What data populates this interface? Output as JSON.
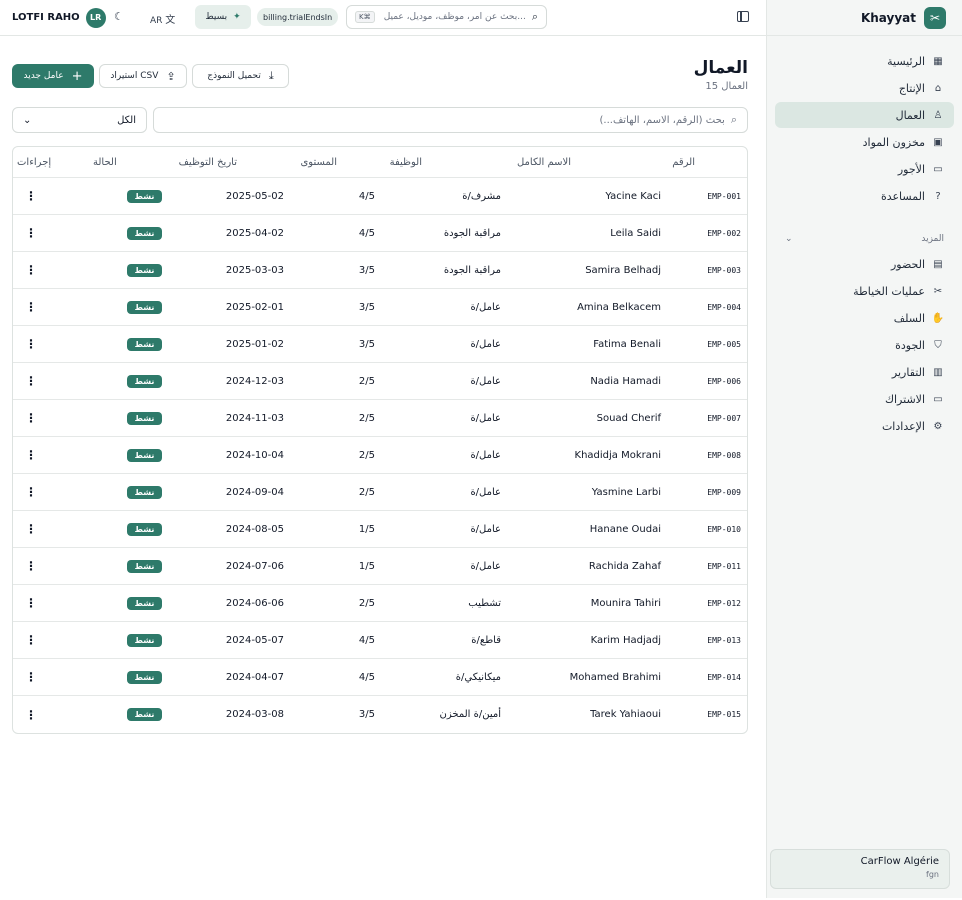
{
  "app": {
    "name": "Khayyat"
  },
  "sidebar": {
    "items": [
      {
        "label": "الرئيسية",
        "icon": "dashboard-icon",
        "glyph": "▦"
      },
      {
        "label": "الإنتاج",
        "icon": "factory-icon",
        "glyph": "⌂"
      },
      {
        "label": "العمال",
        "icon": "users-icon",
        "glyph": "♙"
      },
      {
        "label": "مخزون المواد",
        "icon": "box-icon",
        "glyph": "▣"
      },
      {
        "label": "الأجور",
        "icon": "wallet-icon",
        "glyph": "▭"
      },
      {
        "label": "المساعدة",
        "icon": "help-icon",
        "glyph": "?"
      }
    ],
    "more_label": "المزيد",
    "more_items": [
      {
        "label": "الحضور",
        "icon": "calendar-icon",
        "glyph": "▤"
      },
      {
        "label": "عمليات الخياطة",
        "icon": "scissors-icon",
        "glyph": "✂"
      },
      {
        "label": "السلف",
        "icon": "hand-coins-icon",
        "glyph": "✋"
      },
      {
        "label": "الجودة",
        "icon": "shield-icon",
        "glyph": "⛉"
      },
      {
        "label": "التقارير",
        "icon": "bar-chart-icon",
        "glyph": "▥"
      },
      {
        "label": "الاشتراك",
        "icon": "credit-card-icon",
        "glyph": "▭"
      },
      {
        "label": "الإعدادات",
        "icon": "gear-icon",
        "glyph": "⚙"
      }
    ],
    "org": {
      "name": "CarFlow Algérie",
      "sub": "fgn"
    }
  },
  "topbar": {
    "user_name": "LOTFI RAHO",
    "avatar_initials": "LR",
    "lang": "AR",
    "plan": "بسيط",
    "trial": "billing.trialEndsIn",
    "search_placeholder": "بحث عن أمر، موظف، موديل، عميل...",
    "search_shortcut": "K⌘"
  },
  "page": {
    "title": "العمال",
    "subtitle": "15 العمال",
    "new_button": "عامل جديد",
    "import_button": "استيراد CSV",
    "template_button": "تحميل النموذج",
    "search_placeholder": "بحث (الرقم، الاسم، الهاتف...)",
    "filter_value": "الكل"
  },
  "table": {
    "headers": {
      "id": "الرقم",
      "name": "الاسم الكامل",
      "job": "الوظيفة",
      "level": "المستوى",
      "date": "تاريخ التوظيف",
      "status": "الحالة",
      "actions": "إجراءات"
    },
    "rows": [
      {
        "id": "EMP-001",
        "name": "Yacine Kaci",
        "job": "مشرف/ة",
        "level": "4/5",
        "date": "2025-05-02",
        "status": "نشط"
      },
      {
        "id": "EMP-002",
        "name": "Leila Saidi",
        "job": "مراقبة الجودة",
        "level": "4/5",
        "date": "2025-04-02",
        "status": "نشط"
      },
      {
        "id": "EMP-003",
        "name": "Samira Belhadj",
        "job": "مراقبة الجودة",
        "level": "3/5",
        "date": "2025-03-03",
        "status": "نشط"
      },
      {
        "id": "EMP-004",
        "name": "Amina Belkacem",
        "job": "عامل/ة",
        "level": "3/5",
        "date": "2025-02-01",
        "status": "نشط"
      },
      {
        "id": "EMP-005",
        "name": "Fatima Benali",
        "job": "عامل/ة",
        "level": "3/5",
        "date": "2025-01-02",
        "status": "نشط"
      },
      {
        "id": "EMP-006",
        "name": "Nadia Hamadi",
        "job": "عامل/ة",
        "level": "2/5",
        "date": "2024-12-03",
        "status": "نشط"
      },
      {
        "id": "EMP-007",
        "name": "Souad Cherif",
        "job": "عامل/ة",
        "level": "2/5",
        "date": "2024-11-03",
        "status": "نشط"
      },
      {
        "id": "EMP-008",
        "name": "Khadidja Mokrani",
        "job": "عامل/ة",
        "level": "2/5",
        "date": "2024-10-04",
        "status": "نشط"
      },
      {
        "id": "EMP-009",
        "name": "Yasmine Larbi",
        "job": "عامل/ة",
        "level": "2/5",
        "date": "2024-09-04",
        "status": "نشط"
      },
      {
        "id": "EMP-010",
        "name": "Hanane Oudai",
        "job": "عامل/ة",
        "level": "1/5",
        "date": "2024-08-05",
        "status": "نشط"
      },
      {
        "id": "EMP-011",
        "name": "Rachida Zahaf",
        "job": "عامل/ة",
        "level": "1/5",
        "date": "2024-07-06",
        "status": "نشط"
      },
      {
        "id": "EMP-012",
        "name": "Mounira Tahiri",
        "job": "تشطيب",
        "level": "2/5",
        "date": "2024-06-06",
        "status": "نشط"
      },
      {
        "id": "EMP-013",
        "name": "Karim Hadjadj",
        "job": "قاطع/ة",
        "level": "4/5",
        "date": "2024-05-07",
        "status": "نشط"
      },
      {
        "id": "EMP-014",
        "name": "Mohamed Brahimi",
        "job": "ميكانيكي/ة",
        "level": "4/5",
        "date": "2024-04-07",
        "status": "نشط"
      },
      {
        "id": "EMP-015",
        "name": "Tarek Yahiaoui",
        "job": "أمين/ة المخزن",
        "level": "3/5",
        "date": "2024-03-08",
        "status": "نشط"
      }
    ]
  },
  "colors": {
    "accent": "#2e7a6a",
    "active_bg": "#dbe7e2"
  }
}
